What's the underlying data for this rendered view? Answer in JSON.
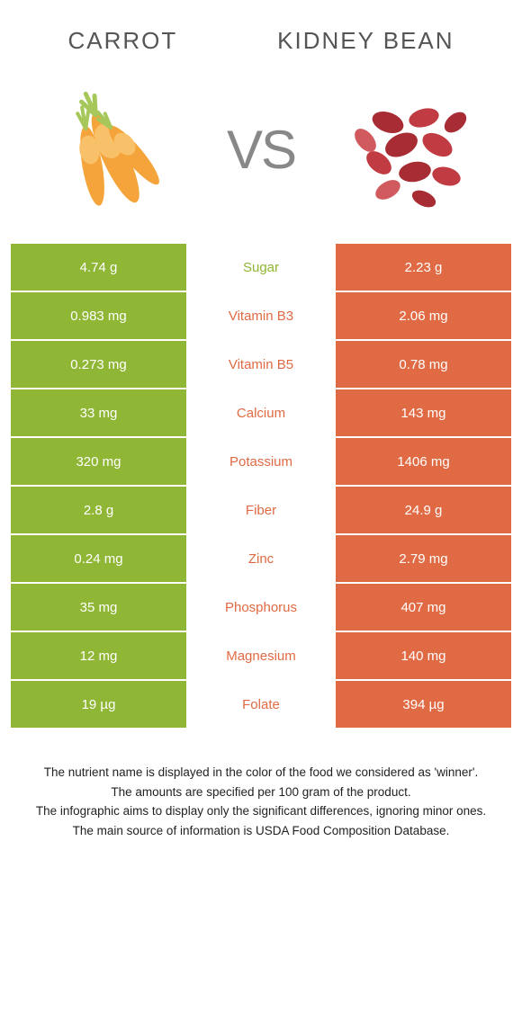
{
  "left_food": {
    "name": "Carrot",
    "color": "#8fb635"
  },
  "right_food": {
    "name": "Kidney bean",
    "color": "#e06a43"
  },
  "vs_label": "VS",
  "carrot_illustration_colors": {
    "body": "#f4a43a",
    "body_light": "#f9c06a",
    "leaf": "#a6c85b"
  },
  "bean_illustration_colors": {
    "bean_dark": "#a72c33",
    "bean_mid": "#c13b42",
    "bean_light": "#d15a5f"
  },
  "rows": [
    {
      "left": "4.74 g",
      "label": "Sugar",
      "right": "2.23 g",
      "winner": "left"
    },
    {
      "left": "0.983 mg",
      "label": "Vitamin B3",
      "right": "2.06 mg",
      "winner": "right"
    },
    {
      "left": "0.273 mg",
      "label": "Vitamin B5",
      "right": "0.78 mg",
      "winner": "right"
    },
    {
      "left": "33 mg",
      "label": "Calcium",
      "right": "143 mg",
      "winner": "right"
    },
    {
      "left": "320 mg",
      "label": "Potassium",
      "right": "1406 mg",
      "winner": "right"
    },
    {
      "left": "2.8 g",
      "label": "Fiber",
      "right": "24.9 g",
      "winner": "right"
    },
    {
      "left": "0.24 mg",
      "label": "Zinc",
      "right": "2.79 mg",
      "winner": "right"
    },
    {
      "left": "35 mg",
      "label": "Phosphorus",
      "right": "407 mg",
      "winner": "right"
    },
    {
      "left": "12 mg",
      "label": "Magnesium",
      "right": "140 mg",
      "winner": "right"
    },
    {
      "left": "19 µg",
      "label": "Folate",
      "right": "394 µg",
      "winner": "right"
    }
  ],
  "footnotes": [
    "The nutrient name is displayed in the color of the food we considered as 'winner'.",
    "The amounts are specified per 100 gram of the product.",
    "The infographic aims to display only the significant differences, ignoring minor ones.",
    "The main source of information is USDA Food Composition Database."
  ],
  "text_color": "#333333",
  "background_color": "#ffffff",
  "row_text_color": "#ffffff",
  "fontsize_title": 26,
  "fontsize_vs": 60,
  "fontsize_cell": 15,
  "fontsize_footnote": 13.5
}
